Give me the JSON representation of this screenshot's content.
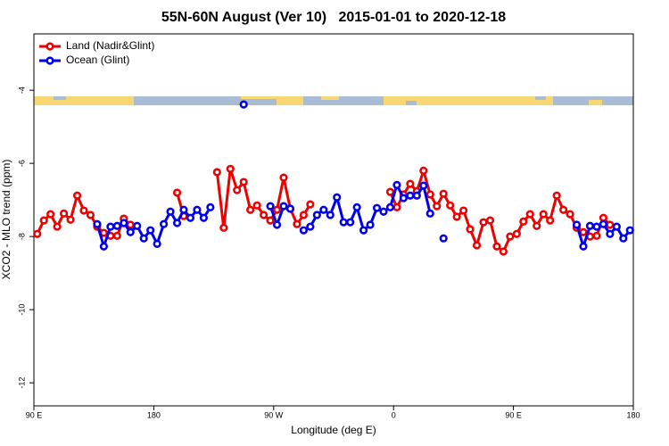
{
  "chart_data": {
    "type": "line",
    "title": "55N-60N August (Ver 10)   2015-01-01 to 2020-12-18",
    "xlabel": "Longitude (deg E)",
    "ylabel": "XCO2 - MLO trend (ppm)",
    "xlim": [
      90,
      540
    ],
    "ylim": [
      -12.63,
      -2.46
    ],
    "xticks": [
      {
        "value": 90,
        "label": "90 E"
      },
      180,
      {
        "value": 270,
        "label": "90 W"
      },
      {
        "value": 360,
        "label": "0"
      },
      {
        "value": 450,
        "label": "90 E"
      },
      {
        "value": 540,
        "label": "180"
      }
    ],
    "yticks": [
      -4,
      -6,
      -8,
      -10,
      -12
    ],
    "legend": "top-left",
    "x": [
      92.5,
      97.5,
      102.5,
      107.5,
      112.5,
      117.5,
      122.5,
      127.5,
      132.5,
      137.5,
      142.5,
      147.5,
      152.5,
      157.5,
      162.5,
      167.5,
      172.5,
      177.5,
      182.5,
      187.5,
      192.5,
      197.5,
      202.5,
      207.5,
      212.5,
      217.5,
      222.5,
      227.5,
      232.5,
      237.5,
      242.5,
      247.5,
      252.5,
      257.5,
      262.5,
      267.5,
      272.5,
      277.5,
      282.5,
      287.5,
      292.5,
      297.5,
      302.5,
      307.5,
      312.5,
      317.5,
      322.5,
      327.5,
      332.5,
      337.5,
      342.5,
      347.5,
      352.5,
      357.5,
      362.5,
      367.5,
      372.5,
      377.5,
      382.5,
      387.5,
      392.5,
      397.5,
      402.5,
      407.5,
      412.5,
      417.5,
      422.5,
      427.5,
      432.5,
      437.5,
      442.5,
      447.5,
      452.5,
      457.5,
      462.5,
      467.5,
      472.5,
      477.5,
      482.5,
      487.5,
      492.5,
      497.5,
      502.5,
      507.5,
      512.5,
      517.5,
      522.5,
      527.5,
      532.5,
      537.5
    ],
    "series": [
      {
        "name": "Land (Nadir&Glint)",
        "color": "#ee0000",
        "values": [
          -7.93,
          -7.56,
          -7.39,
          -7.73,
          -7.37,
          -7.54,
          -6.88,
          -7.29,
          -7.41,
          -7.73,
          -7.9,
          -7.98,
          -7.98,
          -7.51,
          -7.68,
          null,
          null,
          null,
          null,
          null,
          null,
          -6.8,
          -7.44,
          null,
          null,
          null,
          null,
          -6.24,
          -7.76,
          -6.15,
          -6.73,
          -6.51,
          -7.27,
          -7.15,
          -7.41,
          -7.56,
          -7.27,
          -6.39,
          -7.24,
          -7.66,
          -7.41,
          -7.12,
          null,
          null,
          null,
          null,
          null,
          null,
          null,
          null,
          null,
          null,
          null,
          -6.78,
          -7.2,
          -6.85,
          -6.56,
          -6.76,
          -6.2,
          -6.85,
          -7.17,
          -6.83,
          -7.15,
          -7.46,
          -7.29,
          -7.8,
          -8.24,
          -7.61,
          -7.56,
          -8.27,
          -8.41,
          -8,
          -7.93,
          -7.59,
          -7.39,
          -7.71,
          -7.39,
          -7.56,
          -6.88,
          -7.27,
          -7.39,
          -7.76,
          -7.88,
          -8,
          -7.98,
          -7.49,
          -7.68,
          null,
          null,
          null
        ]
      },
      {
        "name": "Ocean (Glint)",
        "color": "#0000ee",
        "values": [
          null,
          null,
          null,
          null,
          null,
          null,
          null,
          null,
          null,
          -7.66,
          -8.27,
          -7.73,
          -7.71,
          -7.63,
          -7.88,
          -7.71,
          -8.05,
          -7.83,
          -8.2,
          -7.66,
          -7.32,
          -7.63,
          -7.27,
          -7.49,
          -7.27,
          -7.49,
          -7.2,
          null,
          null,
          null,
          null,
          -4.39,
          null,
          null,
          null,
          -7.17,
          -7.68,
          -7.17,
          -7.24,
          null,
          -7.83,
          -7.73,
          -7.41,
          -7.27,
          -7.41,
          -6.93,
          -7.61,
          -7.61,
          -7.2,
          -7.83,
          -7.68,
          -7.22,
          -7.32,
          -7.2,
          -6.59,
          -6.95,
          -6.88,
          -6.88,
          -6.61,
          -7.37,
          null,
          -8.05,
          null,
          null,
          null,
          null,
          null,
          null,
          null,
          null,
          null,
          null,
          null,
          null,
          null,
          null,
          null,
          null,
          null,
          null,
          null,
          -7.68,
          -8.27,
          -7.71,
          -7.73,
          -7.66,
          -7.93,
          -7.73,
          -8.05,
          -7.83
        ]
      }
    ]
  }
}
